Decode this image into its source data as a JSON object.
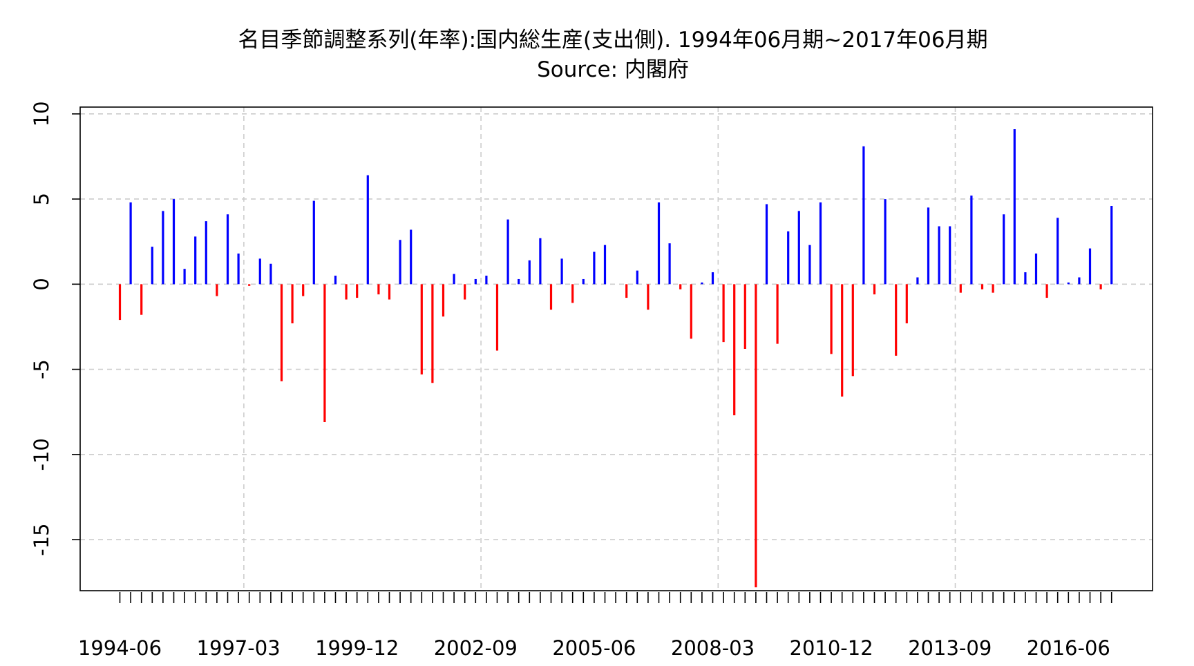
{
  "chart_data": {
    "type": "bar",
    "title": "名目季節調整系列(年率):国内総生産(支出側). 1994年06月期~2017年06月期",
    "subtitle": "Source: 内閣府",
    "xlabel": "",
    "ylabel": "",
    "ylim": [
      -18,
      10.4
    ],
    "y_ticks": [
      {
        "value": 10,
        "label": "10"
      },
      {
        "value": 5,
        "label": "5"
      },
      {
        "value": 0,
        "label": "0"
      },
      {
        "value": -5,
        "label": "-5"
      },
      {
        "value": -10,
        "label": "-10"
      },
      {
        "value": -15,
        "label": "-15"
      }
    ],
    "x_tick_labels": [
      {
        "index": 0,
        "label": "1994-06"
      },
      {
        "index": 11,
        "label": "1997-03"
      },
      {
        "index": 22,
        "label": "1999-12"
      },
      {
        "index": 33,
        "label": "2002-09"
      },
      {
        "index": 44,
        "label": "2005-06"
      },
      {
        "index": 55,
        "label": "2008-03"
      },
      {
        "index": 66,
        "label": "2010-12"
      },
      {
        "index": 77,
        "label": "2013-09"
      },
      {
        "index": 88,
        "label": "2016-06"
      }
    ],
    "x_grid_indices": [
      11.5,
      33.5,
      55.5,
      77.5
    ],
    "grid": true,
    "positive_color": "#0000ff",
    "negative_color": "#ff0000",
    "categories": [
      "1994-06",
      "1994-09",
      "1994-12",
      "1995-03",
      "1995-06",
      "1995-09",
      "1995-12",
      "1996-03",
      "1996-06",
      "1996-09",
      "1996-12",
      "1997-03",
      "1997-06",
      "1997-09",
      "1997-12",
      "1998-03",
      "1998-06",
      "1998-09",
      "1998-12",
      "1999-03",
      "1999-06",
      "1999-09",
      "1999-12",
      "2000-03",
      "2000-06",
      "2000-09",
      "2000-12",
      "2001-03",
      "2001-06",
      "2001-09",
      "2001-12",
      "2002-03",
      "2002-06",
      "2002-09",
      "2002-12",
      "2003-03",
      "2003-06",
      "2003-09",
      "2003-12",
      "2004-03",
      "2004-06",
      "2004-09",
      "2004-12",
      "2005-03",
      "2005-06",
      "2005-09",
      "2005-12",
      "2006-03",
      "2006-06",
      "2006-09",
      "2006-12",
      "2007-03",
      "2007-06",
      "2007-09",
      "2007-12",
      "2008-03",
      "2008-06",
      "2008-09",
      "2008-12",
      "2009-03",
      "2009-06",
      "2009-09",
      "2009-12",
      "2010-03",
      "2010-06",
      "2010-09",
      "2010-12",
      "2011-03",
      "2011-06",
      "2011-09",
      "2011-12",
      "2012-03",
      "2012-06",
      "2012-09",
      "2012-12",
      "2013-03",
      "2013-06",
      "2013-09",
      "2013-12",
      "2014-03",
      "2014-06",
      "2014-09",
      "2014-12",
      "2015-03",
      "2015-06",
      "2015-09",
      "2015-12",
      "2016-03",
      "2016-06",
      "2016-09",
      "2016-12",
      "2017-03",
      "2017-06"
    ],
    "values": [
      -2.1,
      4.8,
      -1.8,
      2.2,
      4.3,
      5.0,
      0.9,
      2.8,
      3.7,
      -0.7,
      4.1,
      1.8,
      -0.1,
      1.5,
      1.2,
      -5.7,
      -2.3,
      -0.7,
      4.9,
      -8.1,
      0.5,
      -0.9,
      -0.8,
      6.4,
      -0.6,
      -0.9,
      2.6,
      3.2,
      -5.3,
      -5.8,
      -1.9,
      0.6,
      -0.9,
      0.3,
      0.5,
      -3.9,
      3.8,
      0.3,
      1.4,
      2.7,
      -1.5,
      1.5,
      -1.1,
      0.3,
      1.9,
      2.3,
      0.0,
      -0.8,
      0.8,
      -1.5,
      4.8,
      2.4,
      -0.3,
      -3.2,
      0.1,
      0.7,
      -3.4,
      -7.7,
      -3.8,
      -17.8,
      4.7,
      -3.5,
      3.1,
      4.3,
      2.3,
      4.8,
      -4.1,
      -6.6,
      -5.4,
      8.1,
      -0.6,
      5.0,
      -4.2,
      -2.3,
      0.4,
      4.5,
      3.4,
      3.4,
      -0.5,
      5.2,
      -0.3,
      -0.5,
      4.1,
      9.1,
      0.7,
      1.8,
      -0.8,
      3.9,
      0.1,
      0.4,
      2.1,
      -0.3,
      4.6
    ]
  }
}
